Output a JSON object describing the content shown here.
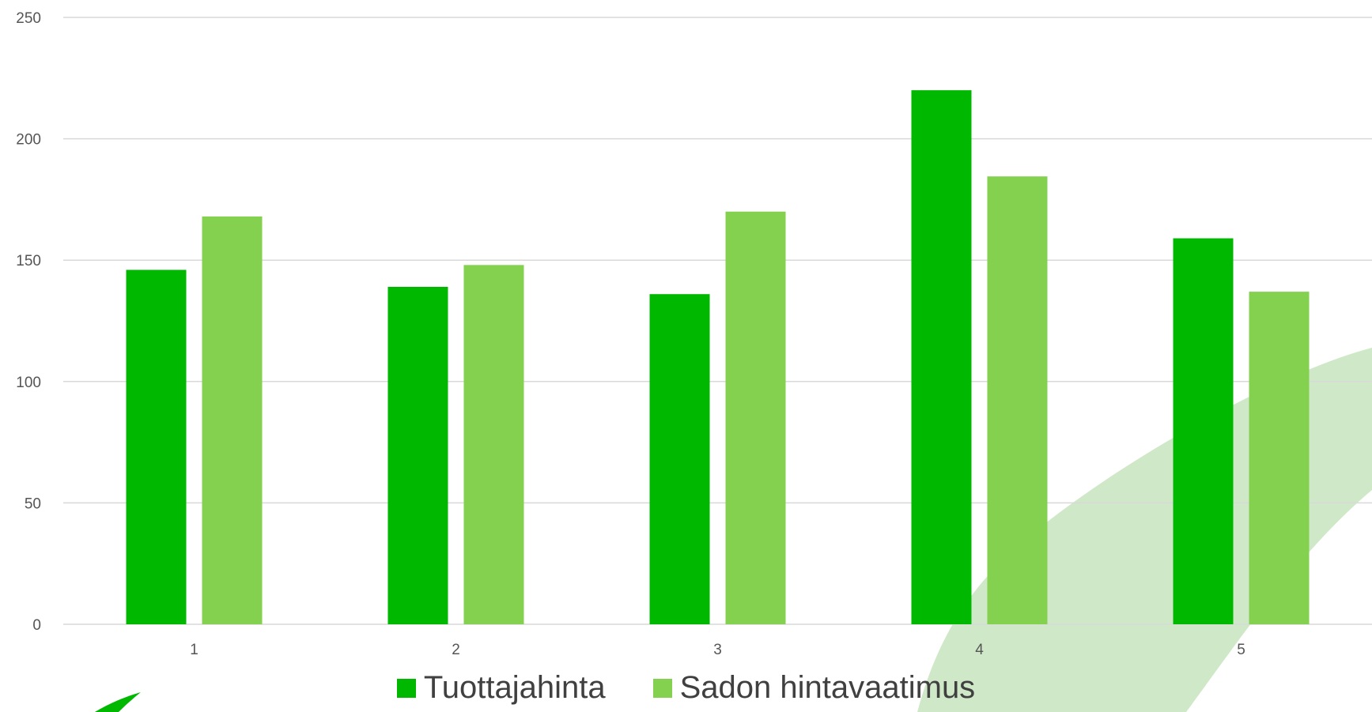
{
  "chart_data": {
    "type": "bar",
    "categories": [
      "1",
      "2",
      "3",
      "4",
      "5"
    ],
    "series": [
      {
        "name": "Tuottajahinta",
        "color": "#00b800",
        "values": [
          146,
          139,
          136,
          220,
          159
        ]
      },
      {
        "name": "Sadon hintavaatimus",
        "color": "#84d150",
        "values": [
          168,
          148,
          170,
          184.5,
          137
        ]
      }
    ],
    "ylim": [
      0,
      250
    ],
    "yticks": [
      "0",
      "50",
      "100",
      "150",
      "200",
      "250"
    ],
    "grid": true,
    "legend_position": "bottom"
  },
  "decoration": {
    "color": "#cfe8c8"
  }
}
